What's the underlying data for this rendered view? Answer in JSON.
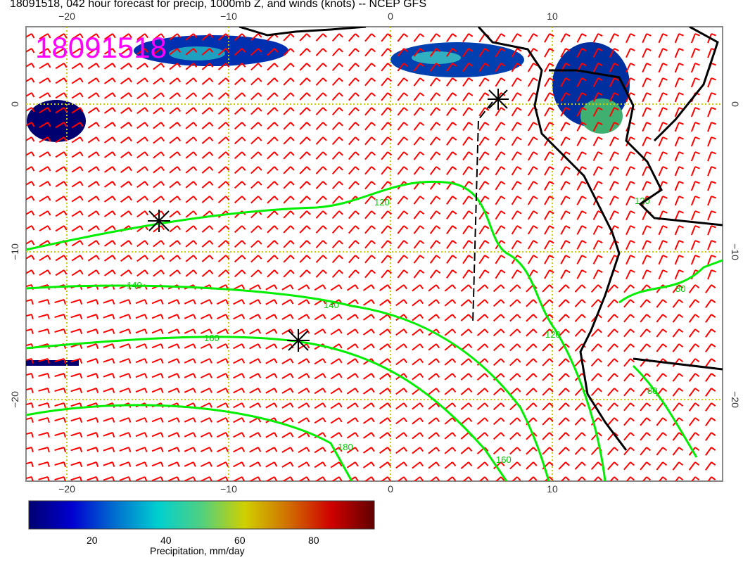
{
  "title": "18091518, 042 hour forecast for precip, 1000mb Z, and winds (knots) -- NCEP GFS",
  "stamp": "18091518",
  "map": {
    "lon_ticks": [
      -20,
      -10,
      0,
      10
    ],
    "lat_ticks": [
      0,
      -10,
      -20
    ],
    "lon_range": [
      -22.5,
      20.5
    ],
    "lat_range": [
      4.7,
      -25.5
    ],
    "contour_color": "#00ee00",
    "barb_color": "#ff0000",
    "grid_color": "#cccc00",
    "coast_color": "#000000",
    "contour_labels": [
      "120",
      "140",
      "140",
      "160",
      "180",
      "120",
      "160",
      "80",
      "80",
      "120"
    ]
  },
  "colorbar": {
    "label": "Precipitation, mm/day",
    "ticks": [
      "20",
      "40",
      "60",
      "80"
    ],
    "colors": [
      "#000070",
      "#0000d0",
      "#0070d0",
      "#00d0d0",
      "#50d080",
      "#d0d000",
      "#d07000",
      "#d00000",
      "#600000"
    ]
  }
}
